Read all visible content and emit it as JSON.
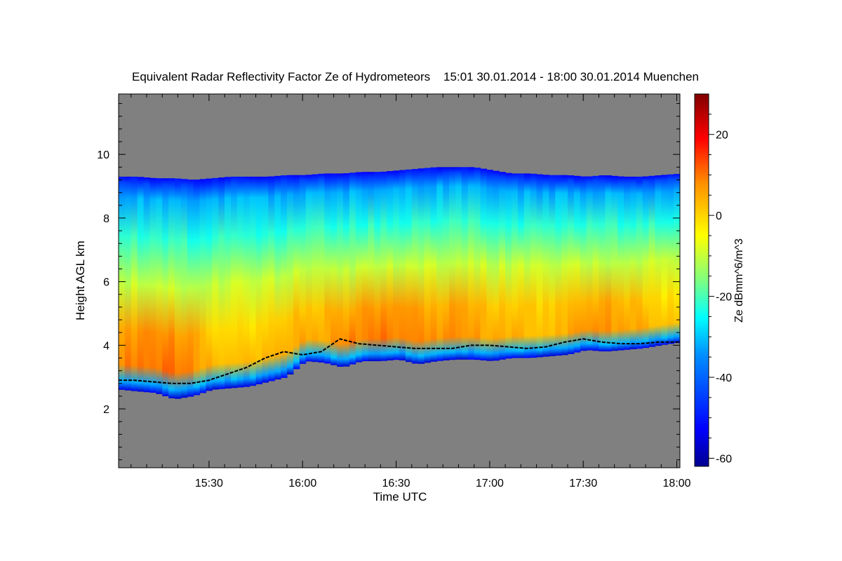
{
  "chart_data": {
    "type": "heatmap",
    "title": "Equivalent Radar Reflectivity Factor Ze of Hydrometeors    15:01 30.01.2014 - 18:00 30.01.2014 Muenchen",
    "xlabel": "Time UTC",
    "ylabel": "Height AGL km",
    "colorbar_label": "Ze dBmm^6/m^3",
    "x_ticks": [
      "15:30",
      "16:00",
      "16:30",
      "17:00",
      "17:30",
      "18:00"
    ],
    "x_tick_minutes": [
      30,
      60,
      90,
      120,
      150,
      180
    ],
    "xlim_minutes": [
      1,
      181
    ],
    "y_ticks": [
      "2",
      "4",
      "6",
      "8",
      "10"
    ],
    "y_tick_values": [
      2,
      4,
      6,
      8,
      10
    ],
    "ylim_km": [
      0.15,
      11.9
    ],
    "colorbar_ticks": [
      "20",
      "0",
      "-20",
      "-40",
      "-60"
    ],
    "colorbar_tick_values": [
      20,
      0,
      -20,
      -40,
      -60
    ],
    "colorbar_range": [
      -62,
      30
    ],
    "background_color": "#808080",
    "cloud": {
      "time_min": [
        1,
        6,
        12,
        18,
        24,
        30,
        36,
        42,
        48,
        54,
        60,
        66,
        72,
        78,
        84,
        90,
        96,
        102,
        108,
        114,
        120,
        126,
        132,
        138,
        144,
        150,
        156,
        162,
        168,
        174,
        181
      ],
      "top_km": [
        9.3,
        9.3,
        9.25,
        9.25,
        9.2,
        9.25,
        9.3,
        9.3,
        9.3,
        9.35,
        9.35,
        9.4,
        9.4,
        9.45,
        9.45,
        9.5,
        9.55,
        9.6,
        9.6,
        9.6,
        9.5,
        9.4,
        9.4,
        9.35,
        9.35,
        9.3,
        9.35,
        9.3,
        9.3,
        9.35,
        9.4
      ],
      "base_km": [
        2.6,
        2.55,
        2.5,
        2.3,
        2.4,
        2.6,
        2.65,
        2.7,
        2.85,
        3.0,
        3.5,
        3.45,
        3.3,
        3.5,
        3.5,
        3.55,
        3.4,
        3.5,
        3.55,
        3.55,
        3.5,
        3.6,
        3.6,
        3.65,
        3.7,
        3.85,
        3.8,
        3.85,
        3.9,
        4.0,
        4.1
      ],
      "melting_layer_km": [
        2.9,
        2.9,
        2.85,
        2.8,
        2.8,
        2.9,
        3.1,
        3.3,
        3.6,
        3.8,
        3.7,
        3.8,
        4.2,
        4.05,
        4.0,
        3.95,
        3.9,
        3.9,
        3.9,
        4.0,
        4.0,
        3.95,
        3.9,
        3.95,
        4.1,
        4.2,
        4.1,
        4.05,
        4.05,
        4.1,
        4.1
      ],
      "max_ze_dbz": [
        9,
        10,
        11,
        10,
        8,
        4,
        2,
        2,
        4,
        5,
        5,
        6,
        8,
        10,
        10,
        9,
        9,
        8,
        8,
        7,
        5,
        4,
        4,
        3,
        5,
        6,
        8,
        6,
        4,
        2,
        0
      ]
    }
  }
}
